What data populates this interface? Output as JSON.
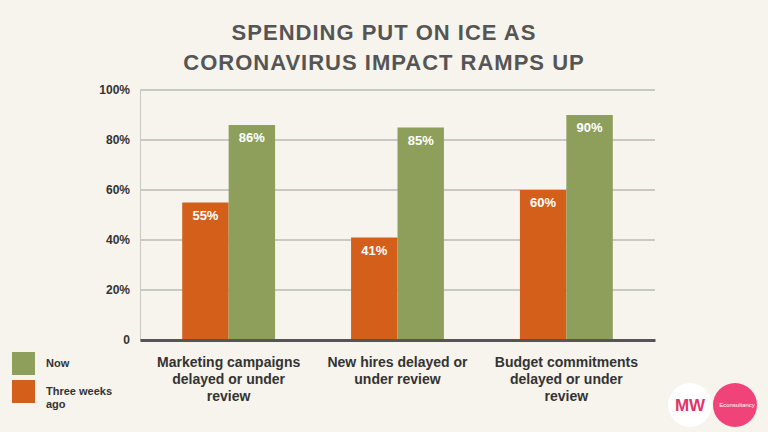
{
  "chart_data": {
    "type": "bar",
    "title": "SPENDING PUT ON ICE AS CORONAVIRUS IMPACT RAMPS UP",
    "categories": [
      "Marketing campaigns delayed or under review",
      "New hires delayed or under review",
      "Budget commitments delayed or under review"
    ],
    "series": [
      {
        "name": "Three weeks ago",
        "color": "#d35f1b",
        "values": [
          55,
          41,
          60
        ]
      },
      {
        "name": "Now",
        "color": "#8e9f5c",
        "values": [
          86,
          85,
          90
        ]
      }
    ],
    "ylim": [
      0,
      100
    ],
    "yticks": [
      0,
      {
        "value": 20,
        "label": "20%"
      },
      {
        "value": 40,
        "label": "40%"
      },
      {
        "value": 60,
        "label": "60%"
      },
      {
        "value": 80,
        "label": "80%"
      },
      {
        "value": 100,
        "label": "100%"
      }
    ],
    "grid": true,
    "data_labels": true,
    "value_labels": [
      [
        "55%",
        "41%",
        "60%"
      ],
      [
        "86%",
        "85%",
        "90%"
      ]
    ],
    "legend": "bottom-left",
    "annotations": [
      "MW",
      "Econsultancy"
    ]
  }
}
